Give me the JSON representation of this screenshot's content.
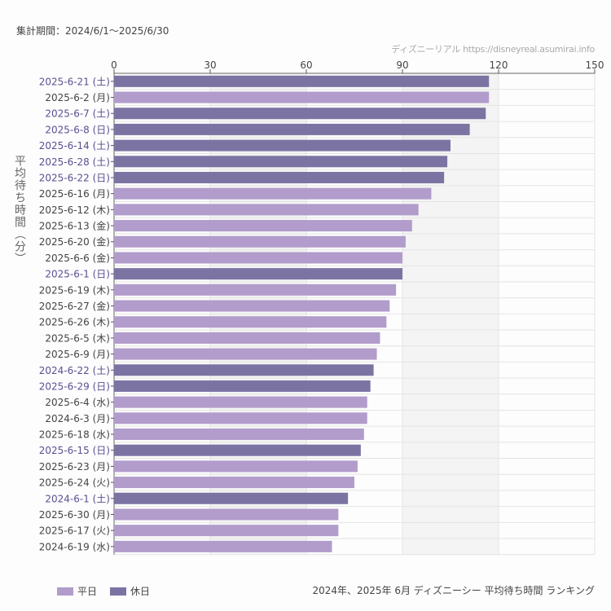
{
  "header": {
    "period": "集計期間：2024/6/1〜2025/6/30",
    "credit": "ディズニーリアル https://disneyreal.asumirai.info"
  },
  "footer": {
    "caption": "2024年、2025年 6月 ディズニーシー 平均待ち時間 ランキング"
  },
  "chart_data": {
    "type": "bar",
    "orientation": "horizontal",
    "ylabel": "平均待ち時間（分）",
    "xlim": [
      0,
      150
    ],
    "xticks": [
      0,
      30,
      60,
      90,
      120,
      150
    ],
    "x_axis_position": "top",
    "grid": true,
    "legend_position": "bottom-left",
    "colors": {
      "平日": "#b19ccb",
      "休日": "#7b74a3",
      "holiday_label": "#5b4f93",
      "weekday_label": "#444444"
    },
    "legend": [
      {
        "name": "平日",
        "key": "weekday"
      },
      {
        "name": "休日",
        "key": "holiday"
      }
    ],
    "categories": [
      "2025-6-21 (土)",
      "2025-6-2 (月)",
      "2025-6-7 (土)",
      "2025-6-8 (日)",
      "2025-6-14 (土)",
      "2025-6-28 (土)",
      "2025-6-22 (日)",
      "2025-6-16 (月)",
      "2025-6-12 (木)",
      "2025-6-13 (金)",
      "2025-6-20 (金)",
      "2025-6-6 (金)",
      "2025-6-1 (日)",
      "2025-6-19 (木)",
      "2025-6-27 (金)",
      "2025-6-26 (木)",
      "2025-6-5 (木)",
      "2025-6-9 (月)",
      "2024-6-22 (土)",
      "2025-6-29 (日)",
      "2025-6-4 (水)",
      "2024-6-3 (月)",
      "2025-6-18 (水)",
      "2025-6-15 (日)",
      "2025-6-23 (月)",
      "2025-6-24 (火)",
      "2024-6-1 (土)",
      "2025-6-30 (月)",
      "2025-6-17 (火)",
      "2024-6-19 (水)"
    ],
    "values": [
      117,
      117,
      116,
      111,
      105,
      104,
      103,
      99,
      95,
      93,
      91,
      90,
      90,
      88,
      86,
      85,
      83,
      82,
      81,
      80,
      79,
      79,
      78,
      77,
      76,
      75,
      73,
      70,
      70,
      68
    ],
    "holiday": [
      true,
      false,
      true,
      true,
      true,
      true,
      true,
      false,
      false,
      false,
      false,
      false,
      true,
      false,
      false,
      false,
      false,
      false,
      true,
      true,
      false,
      false,
      false,
      true,
      false,
      false,
      true,
      false,
      false,
      false
    ]
  }
}
